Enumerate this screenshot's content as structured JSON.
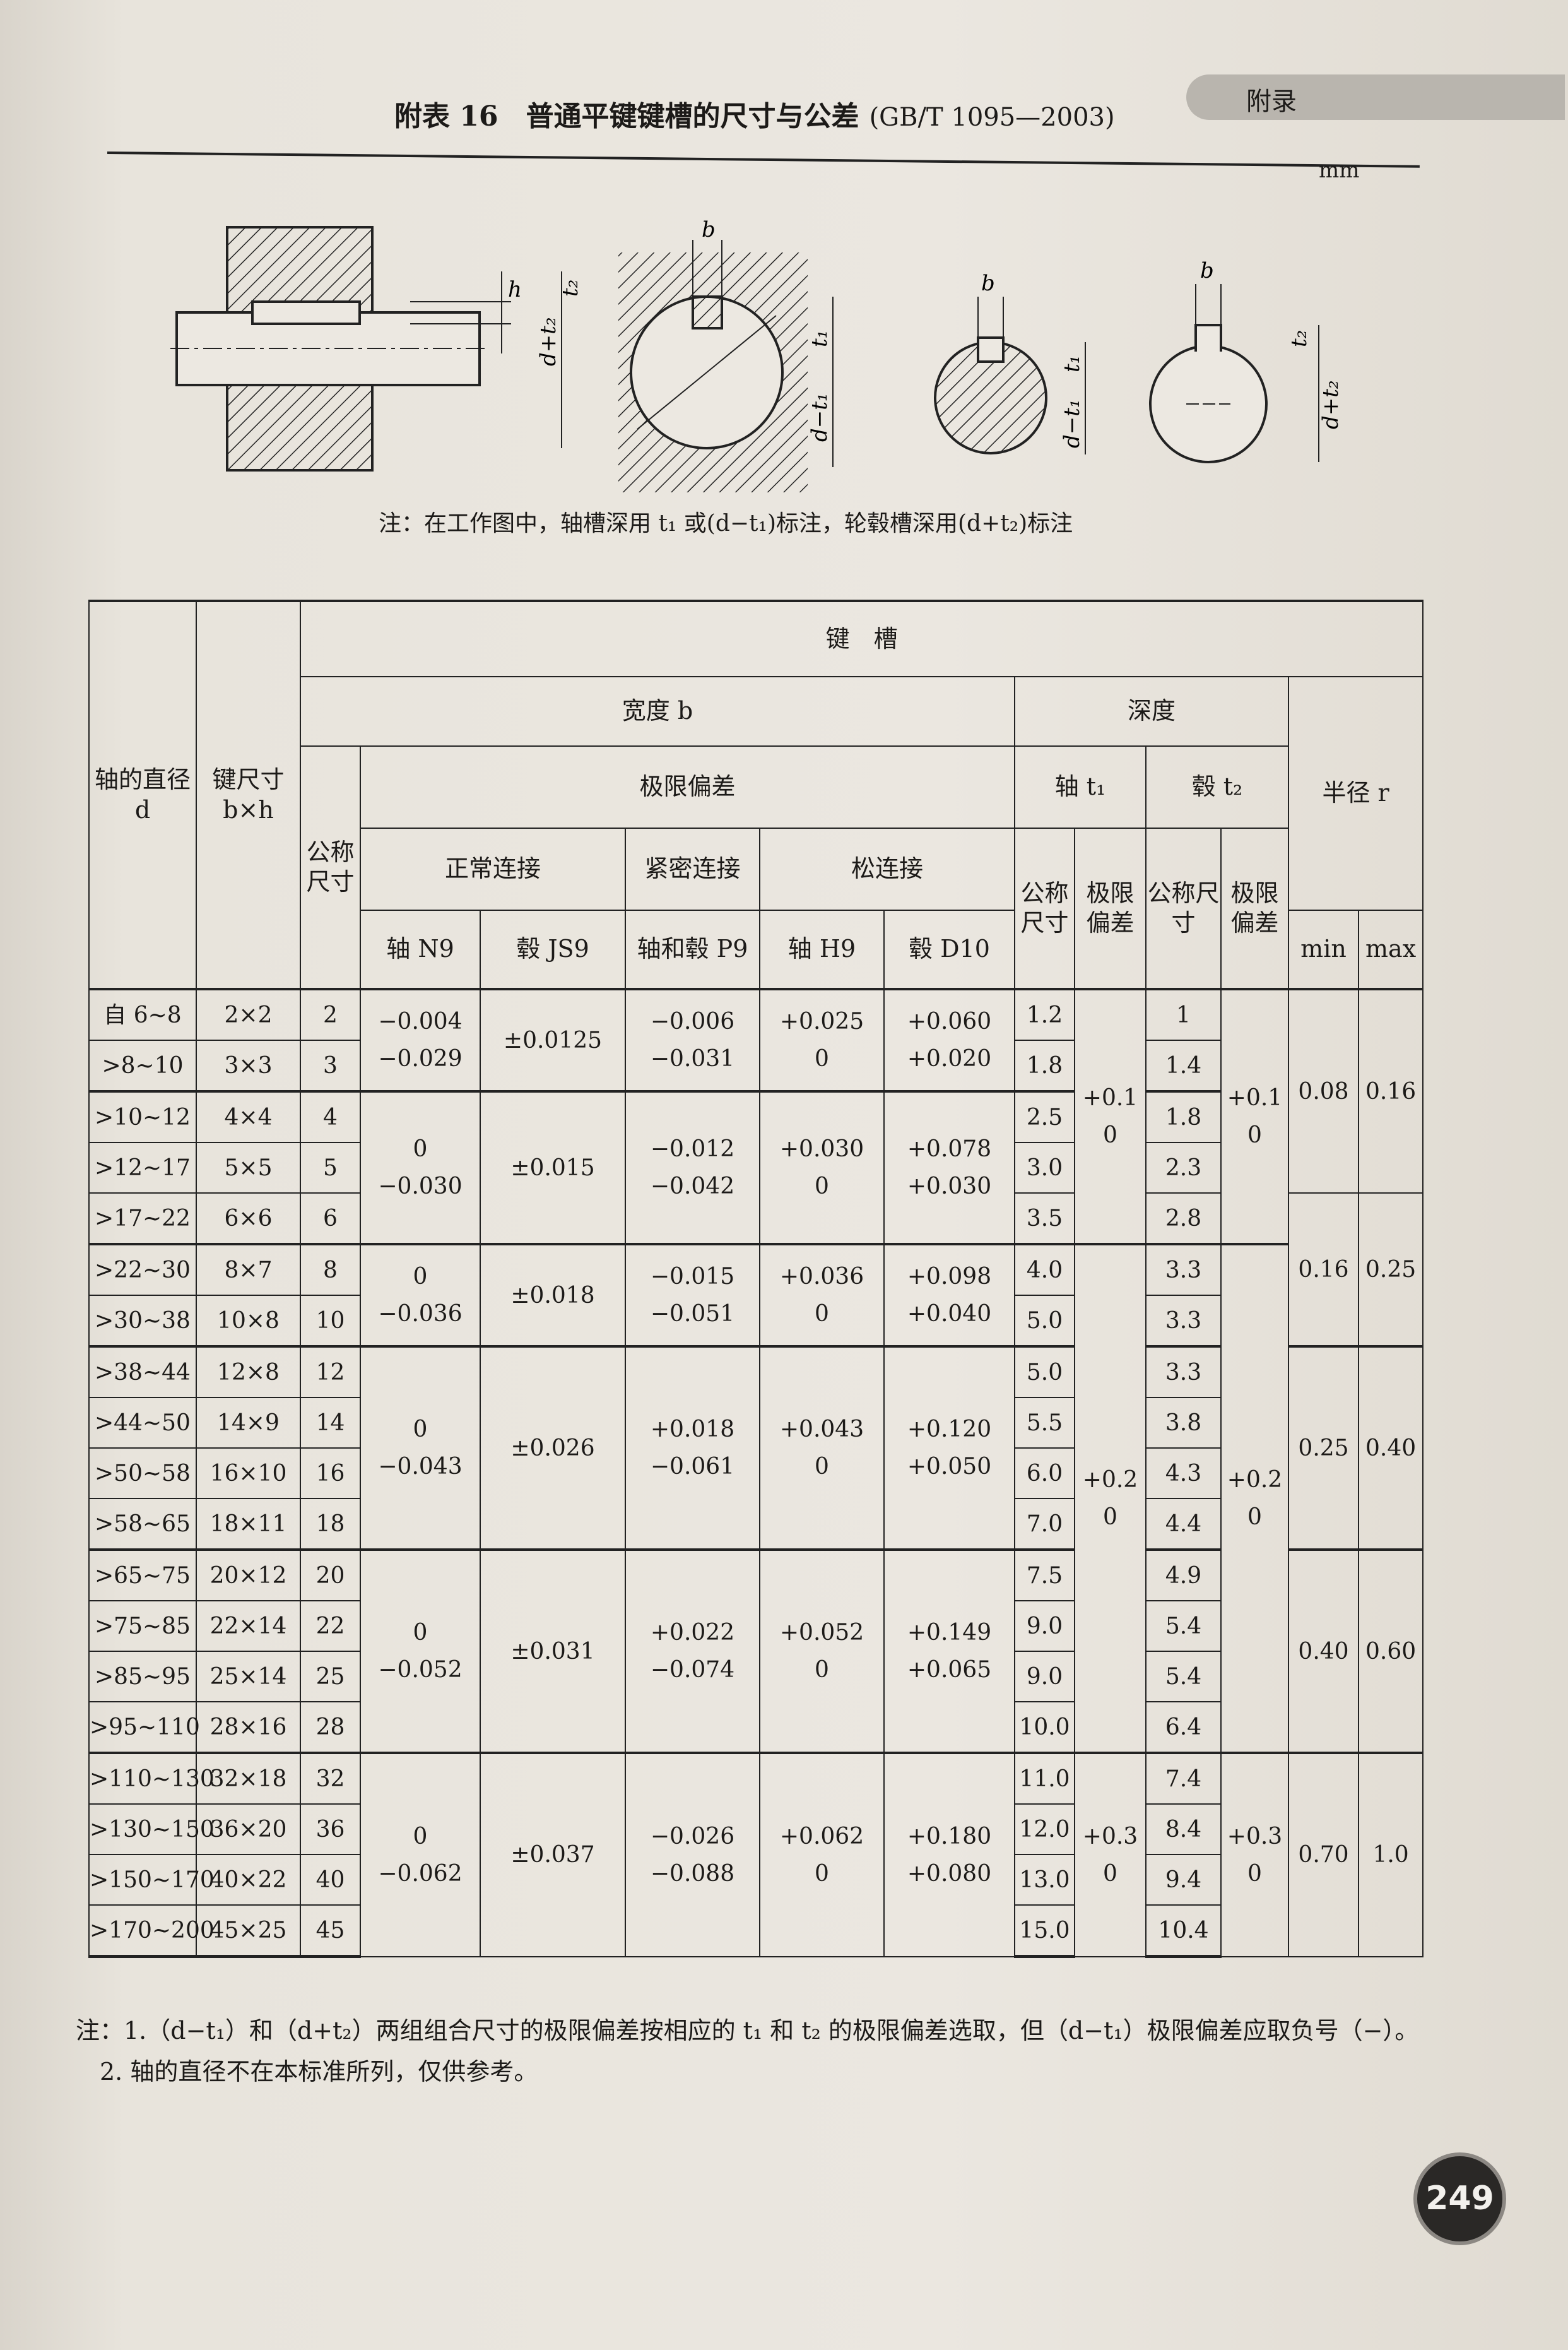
{
  "header": {
    "section_tab": "附录",
    "title": "附表 16　普通平键键槽的尺寸与公差",
    "standard": "(GB/T 1095—2003)",
    "unit": "mm"
  },
  "figure": {
    "labels": {
      "b": "b",
      "h": "h",
      "t1": "t₁",
      "t2": "t₂",
      "d_plus_t2": "d+t₂",
      "d_minus_t1": "d−t₁"
    },
    "note": "注：在工作图中，轴槽深用 t₁ 或(d−t₁)标注，轮毂槽深用(d+t₂)标注"
  },
  "table": {
    "headers": {
      "shaft_diameter": "轴的直径 d",
      "key_size": "键尺寸 b×h",
      "keyway": "键　槽",
      "width": "宽度 b",
      "depth": "深度",
      "radius": "半径 r",
      "nominal": "公称尺寸",
      "limit_deviation": "极限偏差",
      "shaft_t1": "轴 t₁",
      "hub_t2": "毂 t₂",
      "normal": "正常连接",
      "tight": "紧密连接",
      "loose": "松连接",
      "t1_nominal": "公称尺寸",
      "t1_deviation": "极限偏差",
      "t2_nominal": "公称尺寸",
      "t2_deviation": "极限偏差",
      "n9": "轴 N9",
      "js9": "毂 JS9",
      "p9": "轴和毂 P9",
      "h9": "轴 H9",
      "d10": "毂 D10",
      "min": "min",
      "max": "max"
    },
    "rows": [
      {
        "d": "自 6~8",
        "bxh": "2×2",
        "b": "2",
        "t1": "1.2",
        "t2": "1"
      },
      {
        "d": ">8~10",
        "bxh": "3×3",
        "b": "3",
        "t1": "1.8",
        "t2": "1.4"
      },
      {
        "d": ">10~12",
        "bxh": "4×4",
        "b": "4",
        "t1": "2.5",
        "t2": "1.8"
      },
      {
        "d": ">12~17",
        "bxh": "5×5",
        "b": "5",
        "t1": "3.0",
        "t2": "2.3"
      },
      {
        "d": ">17~22",
        "bxh": "6×6",
        "b": "6",
        "t1": "3.5",
        "t2": "2.8"
      },
      {
        "d": ">22~30",
        "bxh": "8×7",
        "b": "8",
        "t1": "4.0",
        "t2": "3.3"
      },
      {
        "d": ">30~38",
        "bxh": "10×8",
        "b": "10",
        "t1": "5.0",
        "t2": "3.3"
      },
      {
        "d": ">38~44",
        "bxh": "12×8",
        "b": "12",
        "t1": "5.0",
        "t2": "3.3"
      },
      {
        "d": ">44~50",
        "bxh": "14×9",
        "b": "14",
        "t1": "5.5",
        "t2": "3.8"
      },
      {
        "d": ">50~58",
        "bxh": "16×10",
        "b": "16",
        "t1": "6.0",
        "t2": "4.3"
      },
      {
        "d": ">58~65",
        "bxh": "18×11",
        "b": "18",
        "t1": "7.0",
        "t2": "4.4"
      },
      {
        "d": ">65~75",
        "bxh": "20×12",
        "b": "20",
        "t1": "7.5",
        "t2": "4.9"
      },
      {
        "d": ">75~85",
        "bxh": "22×14",
        "b": "22",
        "t1": "9.0",
        "t2": "5.4"
      },
      {
        "d": ">85~95",
        "bxh": "25×14",
        "b": "25",
        "t1": "9.0",
        "t2": "5.4"
      },
      {
        "d": ">95~110",
        "bxh": "28×16",
        "b": "28",
        "t1": "10.0",
        "t2": "6.4"
      },
      {
        "d": ">110~130",
        "bxh": "32×18",
        "b": "32",
        "t1": "11.0",
        "t2": "7.4"
      },
      {
        "d": ">130~150",
        "bxh": "36×20",
        "b": "36",
        "t1": "12.0",
        "t2": "8.4"
      },
      {
        "d": ">150~170",
        "bxh": "40×22",
        "b": "40",
        "t1": "13.0",
        "t2": "9.4"
      },
      {
        "d": ">170~200",
        "bxh": "45×25",
        "b": "45",
        "t1": "15.0",
        "t2": "10.4"
      }
    ],
    "width_deviation_groups": [
      {
        "span": 2,
        "n9": [
          "−0.004",
          "−0.029"
        ],
        "js9": [
          "±0.0125"
        ],
        "p9": [
          "−0.006",
          "−0.031"
        ],
        "h9": [
          "+0.025",
          "0"
        ],
        "d10": [
          "+0.060",
          "+0.020"
        ]
      },
      {
        "span": 3,
        "n9": [
          "0",
          "−0.030"
        ],
        "js9": [
          "±0.015"
        ],
        "p9": [
          "−0.012",
          "−0.042"
        ],
        "h9": [
          "+0.030",
          "0"
        ],
        "d10": [
          "+0.078",
          "+0.030"
        ]
      },
      {
        "span": 2,
        "n9": [
          "0",
          "−0.036"
        ],
        "js9": [
          "±0.018"
        ],
        "p9": [
          "−0.015",
          "−0.051"
        ],
        "h9": [
          "+0.036",
          "0"
        ],
        "d10": [
          "+0.098",
          "+0.040"
        ]
      },
      {
        "span": 4,
        "n9": [
          "0",
          "−0.043"
        ],
        "js9": [
          "±0.026"
        ],
        "p9": [
          "+0.018",
          "−0.061"
        ],
        "h9": [
          "+0.043",
          "0"
        ],
        "d10": [
          "+0.120",
          "+0.050"
        ]
      },
      {
        "span": 4,
        "n9": [
          "0",
          "−0.052"
        ],
        "js9": [
          "±0.031"
        ],
        "p9": [
          "+0.022",
          "−0.074"
        ],
        "h9": [
          "+0.052",
          "0"
        ],
        "d10": [
          "+0.149",
          "+0.065"
        ]
      },
      {
        "span": 4,
        "n9": [
          "0",
          "−0.062"
        ],
        "js9": [
          "±0.037"
        ],
        "p9": [
          "−0.026",
          "−0.088"
        ],
        "h9": [
          "+0.062",
          "0"
        ],
        "d10": [
          "+0.180",
          "+0.080"
        ]
      }
    ],
    "t1_deviation_groups": [
      {
        "span": 5,
        "values": [
          "+0.1",
          "0"
        ]
      },
      {
        "span": 10,
        "values": [
          "+0.2",
          "0"
        ]
      },
      {
        "span": 4,
        "values": [
          "+0.3",
          "0"
        ]
      }
    ],
    "t2_deviation_groups": [
      {
        "span": 5,
        "values": [
          "+0.1",
          "0"
        ]
      },
      {
        "span": 10,
        "values": [
          "+0.2",
          "0"
        ]
      },
      {
        "span": 4,
        "values": [
          "+0.3",
          "0"
        ]
      }
    ],
    "radius_groups": [
      {
        "span": 4,
        "min": "0.08",
        "max": "0.16"
      },
      {
        "span": 3,
        "min": "0.16",
        "max": "0.25"
      },
      {
        "span": 4,
        "min": "0.25",
        "max": "0.40"
      },
      {
        "span": 4,
        "min": "0.40",
        "max": "0.60"
      },
      {
        "span": 4,
        "min": "0.70",
        "max": "1.0"
      }
    ]
  },
  "notes": {
    "note1": "注：1.（d−t₁）和（d+t₂）两组组合尺寸的极限偏差按相应的 t₁ 和 t₂ 的极限偏差选取，但（d−t₁）极限偏差应取负号（−）。",
    "note2": "2. 轴的直径不在本标准所列，仅供参考。"
  },
  "page_number": "249"
}
